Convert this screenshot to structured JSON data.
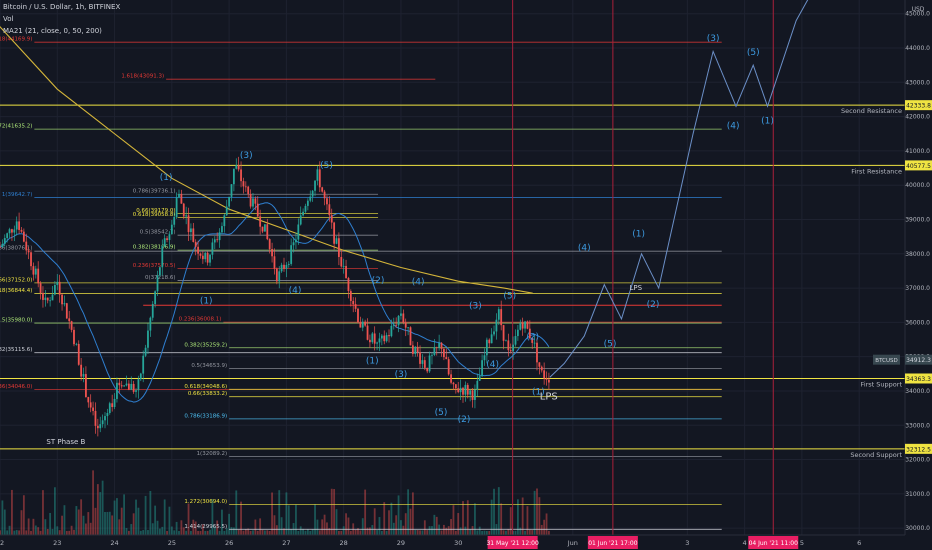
{
  "header": {
    "symbol": "Bitcoin / U.S. Dollar, 1h, BITFINEX",
    "vol": "Vol",
    "ma": "MA21 (21, close, 0, 50, 200)"
  },
  "colors": {
    "bg": "#131722",
    "up": "#26a69a",
    "down": "#ef5350",
    "yellow": "#f0e442",
    "red": "#e53935",
    "blue": "#2f7fd0",
    "green": "#aee879",
    "gray": "#9598a1",
    "lightblue": "#4fc3f7",
    "white": "#d1d4dc",
    "marker": "#e91e63",
    "wave": "#3d9ae0"
  },
  "chart_data": {
    "type": "candlestick",
    "y_axis": {
      "unit": "USD",
      "ticks": [
        "45000.0",
        "44000.0",
        "43000.0",
        "42000.0",
        "41000.0",
        "40000.0",
        "39000.0",
        "38000.0",
        "37000.0",
        "36000.0",
        "35000.0",
        "34000.0",
        "33000.0",
        "32000.0",
        "31000.0",
        "30000.0"
      ],
      "tick_values": [
        45000,
        44000,
        43000,
        42000,
        41000,
        40000,
        39000,
        38000,
        37000,
        36000,
        35000,
        34000,
        33000,
        32000,
        31000,
        30000
      ],
      "range": [
        29800,
        45400
      ]
    },
    "x_axis": {
      "ticks": [
        "22",
        "23",
        "24",
        "25",
        "26",
        "27",
        "28",
        "29",
        "30",
        "Jun",
        "3",
        "4",
        "5",
        "6"
      ],
      "tick_values": [
        22,
        23,
        24,
        25,
        26,
        27,
        28,
        29,
        30,
        32,
        34,
        35,
        36,
        37
      ],
      "range": [
        22,
        37.8
      ]
    },
    "price_path": [
      [
        22,
        38200
      ],
      [
        22.3,
        39000
      ],
      [
        22.8,
        36500
      ],
      [
        23.0,
        37200
      ],
      [
        23.3,
        35500
      ],
      [
        23.5,
        34000
      ],
      [
        23.7,
        32800
      ],
      [
        23.9,
        33500
      ],
      [
        24.1,
        34300
      ],
      [
        24.4,
        34000
      ],
      [
        24.7,
        36800
      ],
      [
        24.85,
        38200
      ],
      [
        25.0,
        38800
      ],
      [
        25.1,
        39800
      ],
      [
        25.4,
        38300
      ],
      [
        25.6,
        37800
      ],
      [
        25.9,
        38900
      ],
      [
        26.1,
        40600
      ],
      [
        26.3,
        39800
      ],
      [
        26.6,
        38800
      ],
      [
        26.85,
        37300
      ],
      [
        27.1,
        38100
      ],
      [
        27.35,
        39600
      ],
      [
        27.55,
        40300
      ],
      [
        27.8,
        38700
      ],
      [
        28.0,
        37500
      ],
      [
        28.3,
        35900
      ],
      [
        28.6,
        35300
      ],
      [
        28.8,
        35700
      ],
      [
        29.0,
        36300
      ],
      [
        29.2,
        35300
      ],
      [
        29.45,
        34700
      ],
      [
        29.7,
        35400
      ],
      [
        29.9,
        34000
      ],
      [
        30.05,
        34100
      ],
      [
        30.3,
        33900
      ],
      [
        30.5,
        35300
      ],
      [
        30.7,
        36300
      ],
      [
        30.9,
        34900
      ],
      [
        31.1,
        36100
      ],
      [
        31.3,
        35500
      ],
      [
        31.45,
        34500
      ],
      [
        31.6,
        34400
      ]
    ],
    "projection_path": [
      [
        31.6,
        34400
      ],
      [
        31.85,
        34800
      ],
      [
        32.2,
        35600
      ],
      [
        32.55,
        37100
      ],
      [
        32.85,
        36100
      ],
      [
        33.2,
        38000
      ],
      [
        33.5,
        37000
      ],
      [
        34.1,
        41500
      ],
      [
        34.45,
        43900
      ],
      [
        34.85,
        42300
      ],
      [
        35.15,
        43500
      ],
      [
        35.4,
        42300
      ],
      [
        35.9,
        44800
      ],
      [
        36.3,
        46000
      ]
    ],
    "fib_levels": [
      {
        "label": "1.618(44169.9)",
        "value": 44169.9,
        "x1": 22.6,
        "x2": 34.6,
        "color": "red"
      },
      {
        "label": "1.618(43091.3)",
        "value": 43091.3,
        "x1": 24.9,
        "x2": 29.6,
        "color": "red"
      },
      {
        "label": "1.272(41635.2)",
        "value": 41635.2,
        "x1": 22.6,
        "x2": 34.6,
        "color": "green"
      },
      {
        "label": "1(39642.7)",
        "value": 39642.7,
        "x1": 22.6,
        "x2": 34.6,
        "color": "blue"
      },
      {
        "label": "0.786(39736.1)",
        "value": 39736.1,
        "x1": 25.1,
        "x2": 28.6,
        "color": "gray"
      },
      {
        "label": "0.66(39179.0)",
        "value": 39179.0,
        "x1": 25.1,
        "x2": 28.6,
        "color": "yellow"
      },
      {
        "label": "0.618(39058.8)",
        "value": 39058.8,
        "x1": 25.1,
        "x2": 28.6,
        "color": "yellow"
      },
      {
        "label": "0.5(38542.7)",
        "value": 38542.7,
        "x1": 25.1,
        "x2": 28.6,
        "color": "gray"
      },
      {
        "label": "0.382(38106.9)",
        "value": 38106.9,
        "x1": 25.1,
        "x2": 28.6,
        "color": "green"
      },
      {
        "label": "0.236(37570.5)",
        "value": 37570.5,
        "x1": 25.1,
        "x2": 28.6,
        "color": "red"
      },
      {
        "label": "0(37218.6)",
        "value": 37218.6,
        "x1": 25.1,
        "x2": 28.6,
        "color": "gray"
      },
      {
        "label": "0.786(38076.1)",
        "value": 38076.1,
        "x1": 22.6,
        "x2": 34.6,
        "color": "gray"
      },
      {
        "label": "0.66(37152.0)",
        "value": 37152.0,
        "x1": 22.6,
        "x2": 34.6,
        "color": "yellow"
      },
      {
        "label": "0.618(36844.4)",
        "value": 36844.4,
        "x1": 22.6,
        "x2": 34.6,
        "color": "yellow"
      },
      {
        "label": "0.5(35980.0)",
        "value": 35980.0,
        "x1": 22.6,
        "x2": 34.6,
        "color": "green"
      },
      {
        "label": "0.382(35115.6)",
        "value": 35115.6,
        "x1": 22.6,
        "x2": 34.6,
        "color": "white"
      },
      {
        "label": "0.236(34046.0)",
        "value": 34046.0,
        "x1": 22.6,
        "x2": 34.6,
        "color": "red"
      },
      {
        "label": "0.236(36008.1)",
        "value": 36008.1,
        "x1": 25.9,
        "x2": 34.6,
        "color": "red"
      },
      {
        "label": "0.382(35259.2)",
        "value": 35259.2,
        "x1": 26.0,
        "x2": 34.6,
        "color": "green"
      },
      {
        "label": "0.5(34653.9)",
        "value": 34653.9,
        "x1": 26.0,
        "x2": 34.6,
        "color": "gray"
      },
      {
        "label": "0.618(34048.6)",
        "value": 34048.6,
        "x1": 26.0,
        "x2": 34.6,
        "color": "yellow"
      },
      {
        "label": "0.66(33833.2)",
        "value": 33833.2,
        "x1": 26.0,
        "x2": 34.6,
        "color": "yellow"
      },
      {
        "label": "0.786(33186.9)",
        "value": 33186.9,
        "x1": 26.0,
        "x2": 34.6,
        "color": "lightblue"
      },
      {
        "label": "1(32089.2)",
        "value": 32089.2,
        "x1": 26.0,
        "x2": 34.6,
        "color": "gray"
      },
      {
        "label": "1.272(30694.0)",
        "value": 30694.0,
        "x1": 26.0,
        "x2": 34.6,
        "color": "yellow"
      },
      {
        "label": "1.414(29965.5)",
        "value": 29965.5,
        "x1": 26.0,
        "x2": 34.6,
        "color": "white"
      }
    ],
    "horizontal_lines": [
      {
        "value": 42333.8,
        "label": "Second Resistance",
        "price_label": "42333.8"
      },
      {
        "value": 40577.5,
        "label": "First Resistance",
        "price_label": "40577.5"
      },
      {
        "value": 34363.3,
        "label": "First Support",
        "price_label": "34363.3"
      },
      {
        "value": 32312.5,
        "label": "Second Support",
        "price_label": "32312.5"
      }
    ],
    "red_segment": {
      "value": 36500,
      "x1": 24.5,
      "x2": 34.6
    },
    "current_price": {
      "label": "BTCUSD",
      "value": 34912.3,
      "price_label": "34912.3"
    },
    "vertical_markers": [
      {
        "x": 30.95,
        "label": "31 May '21  12:00"
      },
      {
        "x": 32.7,
        "label": "01 Jun '21  17:00"
      },
      {
        "x": 35.5,
        "label": "04 Jun '21  11:00"
      }
    ],
    "wave_labels": [
      {
        "text": "(1)",
        "x": 24.9,
        "y": 40150
      },
      {
        "text": "(1)",
        "x": 25.6,
        "y": 36550
      },
      {
        "text": "(3)",
        "x": 26.3,
        "y": 40800
      },
      {
        "text": "(4)",
        "x": 27.15,
        "y": 36850
      },
      {
        "text": "(5)",
        "x": 27.7,
        "y": 40500
      },
      {
        "text": "(2)",
        "x": 28.6,
        "y": 37150
      },
      {
        "text": "(1)",
        "x": 28.5,
        "y": 34800
      },
      {
        "text": "(3)",
        "x": 29.0,
        "y": 34400
      },
      {
        "text": "(4)",
        "x": 29.3,
        "y": 37100
      },
      {
        "text": "(5)",
        "x": 29.7,
        "y": 33300
      },
      {
        "text": "(2)",
        "x": 30.1,
        "y": 33100
      },
      {
        "text": "(3)",
        "x": 30.3,
        "y": 36400
      },
      {
        "text": "(4)",
        "x": 30.6,
        "y": 34700
      },
      {
        "text": "(5)",
        "x": 30.9,
        "y": 36700
      },
      {
        "text": "(2)",
        "x": 31.3,
        "y": 35500
      },
      {
        "text": "(1)",
        "x": 31.4,
        "y": 33900
      },
      {
        "text": "(4)",
        "x": 32.2,
        "y": 38100
      },
      {
        "text": "(5)",
        "x": 32.65,
        "y": 35300
      },
      {
        "text": "(1)",
        "x": 33.15,
        "y": 38500
      },
      {
        "text": "(2)",
        "x": 33.4,
        "y": 36450
      },
      {
        "text": "(3)",
        "x": 34.45,
        "y": 44200
      },
      {
        "text": "(4)",
        "x": 34.8,
        "y": 41650
      },
      {
        "text": "(5)",
        "x": 35.15,
        "y": 43800
      },
      {
        "text": "(1)",
        "x": 35.4,
        "y": 41800
      }
    ],
    "text_labels": [
      {
        "text": "LPS",
        "x": 33.1,
        "y": 36950,
        "size": 7
      },
      {
        "text": "LPS",
        "x": 31.58,
        "y": 33750,
        "size": 10
      },
      {
        "text": "ST Phase B",
        "x": 23.15,
        "y": 32450,
        "size": 7
      }
    ],
    "series": [
      {
        "name": "MA21",
        "color": "#2f7fd0"
      },
      {
        "name": "MA 200",
        "color": "#d4b53a"
      }
    ]
  }
}
